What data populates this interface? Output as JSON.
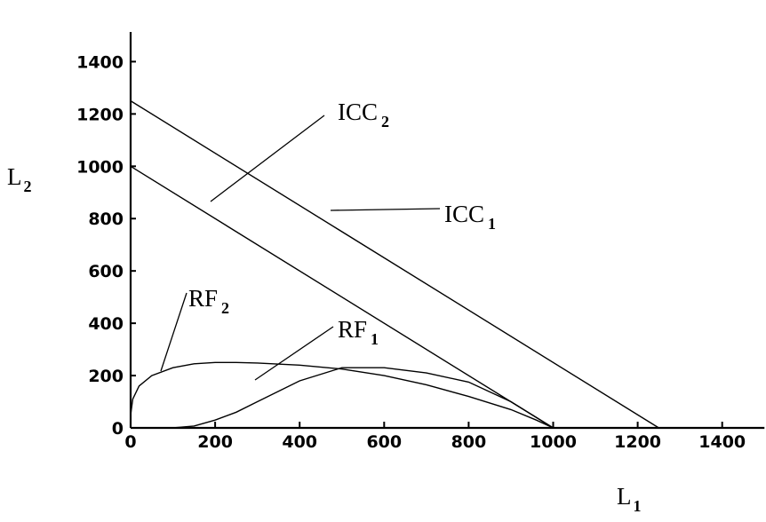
{
  "chart_data": {
    "type": "line",
    "xlabel": {
      "main": "L",
      "sub": "1"
    },
    "ylabel": {
      "main": "L",
      "sub": "2"
    },
    "xlim": [
      0,
      1500
    ],
    "ylim": [
      0,
      1500
    ],
    "xticks": [
      "0",
      "200",
      "400",
      "600",
      "800",
      "1000",
      "1200",
      "1400"
    ],
    "yticks": [
      "0",
      "200",
      "400",
      "600",
      "800",
      "1000",
      "1200",
      "1400"
    ],
    "series": [
      {
        "name": "ICC_1",
        "label_main": "ICC",
        "label_sub": "1",
        "x": [
          0,
          1250
        ],
        "y": [
          1250,
          0
        ]
      },
      {
        "name": "ICC_2",
        "label_main": "ICC",
        "label_sub": "2",
        "x": [
          0,
          1000
        ],
        "y": [
          1000,
          0
        ]
      },
      {
        "name": "RF_2",
        "label_main": "RF",
        "label_sub": "2",
        "x": [
          0,
          5,
          20,
          50,
          100,
          150,
          200,
          250,
          300,
          400,
          500,
          600,
          700,
          800,
          900,
          960,
          1000
        ],
        "y": [
          50,
          110,
          160,
          200,
          230,
          245,
          250,
          250,
          248,
          240,
          225,
          200,
          165,
          120,
          70,
          30,
          0
        ]
      },
      {
        "name": "RF_1",
        "label_main": "RF",
        "label_sub": "1",
        "x": [
          100,
          150,
          200,
          250,
          300,
          400,
          500,
          600,
          700,
          800,
          900,
          960,
          1000
        ],
        "y": [
          0,
          7,
          30,
          60,
          100,
          180,
          230,
          230,
          210,
          175,
          100,
          40,
          0
        ]
      }
    ]
  }
}
